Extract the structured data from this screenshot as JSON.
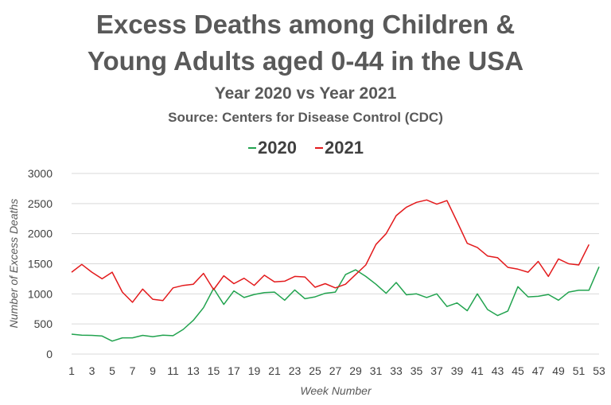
{
  "chart_data": {
    "type": "line",
    "title_line1": "Excess Deaths among Children &",
    "title_line2": "Young Adults aged 0-44 in the USA",
    "subtitle": "Year 2020 vs Year 2021",
    "source": "Source: Centers for Disease Control (CDC)",
    "xlabel": "Week Number",
    "ylabel": "Number of Excess Deaths",
    "ylim": [
      0,
      3000
    ],
    "yticks": [
      0,
      500,
      1000,
      1500,
      2000,
      2500,
      3000
    ],
    "xlim": [
      1,
      53
    ],
    "xticks": [
      1,
      3,
      5,
      7,
      9,
      11,
      13,
      15,
      17,
      19,
      21,
      23,
      25,
      27,
      29,
      31,
      33,
      35,
      37,
      39,
      41,
      43,
      45,
      47,
      49,
      51,
      53
    ],
    "grid": true,
    "legend_position": "top",
    "x": [
      1,
      2,
      3,
      4,
      5,
      6,
      7,
      8,
      9,
      10,
      11,
      12,
      13,
      14,
      15,
      16,
      17,
      18,
      19,
      20,
      21,
      22,
      23,
      24,
      25,
      26,
      27,
      28,
      29,
      30,
      31,
      32,
      33,
      34,
      35,
      36,
      37,
      38,
      39,
      40,
      41,
      42,
      43,
      44,
      45,
      46,
      47,
      48,
      49,
      50,
      51,
      52,
      53
    ],
    "series": [
      {
        "name": "2020",
        "color": "#22a34f",
        "values": [
          330,
          315,
          310,
          300,
          215,
          270,
          270,
          310,
          290,
          315,
          305,
          410,
          560,
          770,
          1090,
          825,
          1050,
          940,
          990,
          1020,
          1030,
          895,
          1065,
          920,
          950,
          1010,
          1030,
          1320,
          1400,
          1290,
          1160,
          1010,
          1190,
          985,
          1000,
          940,
          1000,
          790,
          850,
          720,
          1000,
          740,
          640,
          715,
          1120,
          950,
          960,
          990,
          895,
          1030,
          1060,
          1060,
          1450
        ]
      },
      {
        "name": "2021",
        "color": "#e31a1c",
        "values": [
          1360,
          1490,
          1360,
          1250,
          1360,
          1030,
          860,
          1080,
          910,
          890,
          1100,
          1140,
          1160,
          1340,
          1070,
          1300,
          1170,
          1260,
          1140,
          1310,
          1200,
          1210,
          1290,
          1280,
          1110,
          1170,
          1100,
          1160,
          1320,
          1480,
          1820,
          2000,
          2300,
          2440,
          2520,
          2560,
          2490,
          2550,
          2200,
          1840,
          1770,
          1630,
          1600,
          1440,
          1410,
          1360,
          1540,
          1290,
          1580,
          1500,
          1480,
          1820,
          null
        ]
      }
    ]
  }
}
